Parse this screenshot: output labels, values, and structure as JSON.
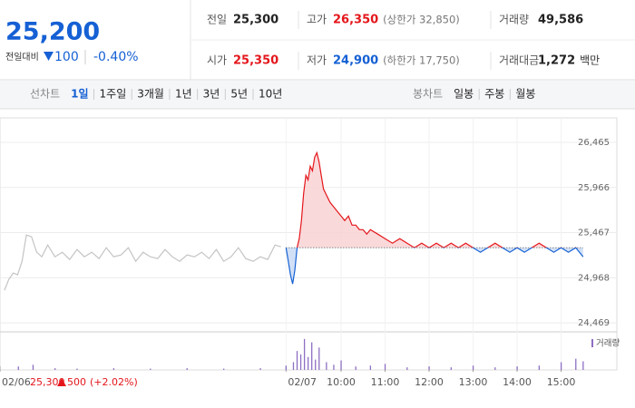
{
  "quote": {
    "price": "25,200",
    "change_label": "전일대비",
    "change": "100",
    "change_pct": "-0.40%"
  },
  "stats": [
    {
      "label": "전일",
      "value": "25,300",
      "color": "#222222"
    },
    {
      "label": "고가",
      "value": "26,350",
      "note": "(상한가 32,850)",
      "color": "#e4161b"
    },
    {
      "label": "거래량",
      "value": "49,586",
      "color": "#222222"
    },
    {
      "label": "시가",
      "value": "25,350",
      "color": "#e4161b"
    },
    {
      "label": "저가",
      "value": "24,900",
      "note": "(하한가 17,750)",
      "color": "#1560d4"
    },
    {
      "label": "거래대금",
      "value": "1,272",
      "unit": "백만",
      "color": "#222222"
    }
  ],
  "line_tabs": {
    "label": "선차트",
    "items": [
      "1일",
      "1주일",
      "3개월",
      "1년",
      "3년",
      "5년",
      "10년"
    ]
  },
  "candle_tabs": {
    "label": "봉차트",
    "items": [
      "일봉",
      "주봉",
      "월봉"
    ]
  },
  "prev_day": {
    "close": "25,300",
    "change": "500",
    "change_pct": "(+2.02%)"
  },
  "chart_data": [
    {
      "type": "line",
      "baseline": 25300,
      "up_color": "#e4161b",
      "down_color": "#1560d4",
      "xlim": [
        -405,
        436
      ],
      "ylim": [
        24370,
        26555
      ],
      "xticks": [
        {
          "value": -405,
          "label": "02/06"
        },
        {
          "value": -15,
          "label": "02/07"
        },
        {
          "value": 60,
          "label": "10:00"
        },
        {
          "value": 120,
          "label": "11:00"
        },
        {
          "value": 180,
          "label": "12:00"
        },
        {
          "value": 240,
          "label": "13:00"
        },
        {
          "value": 300,
          "label": "14:00"
        },
        {
          "value": 360,
          "label": "15:00"
        }
      ],
      "yticks": [
        {
          "value": 24469,
          "label": "24,469"
        },
        {
          "value": 24968,
          "label": "24,968"
        },
        {
          "value": 25467,
          "label": "25,467"
        },
        {
          "value": 25966,
          "label": "25,966"
        },
        {
          "value": 26465,
          "label": "26,465"
        }
      ],
      "grid": true,
      "series": [
        {
          "name": "02/06",
          "color": "#c4c4c4",
          "x": [
            -399,
            -393,
            -387,
            -381,
            -375,
            -369,
            -362,
            -355,
            -348,
            -340,
            -330,
            -320,
            -310,
            -300,
            -290,
            -280,
            -270,
            -260,
            -250,
            -240,
            -230,
            -220,
            -210,
            -200,
            -190,
            -180,
            -170,
            -160,
            -150,
            -140,
            -130,
            -120,
            -110,
            -100,
            -90,
            -80,
            -70,
            -60,
            -50,
            -40,
            -30,
            -22
          ],
          "values": [
            24830,
            24950,
            25020,
            25000,
            25150,
            25440,
            25420,
            25250,
            25200,
            25330,
            25200,
            25250,
            25170,
            25280,
            25200,
            25250,
            25180,
            25300,
            25200,
            25220,
            25300,
            25150,
            25250,
            25200,
            25180,
            25280,
            25200,
            25150,
            25220,
            25200,
            25250,
            25180,
            25280,
            25150,
            25200,
            25300,
            25180,
            25150,
            25200,
            25170,
            25330,
            25310
          ]
        },
        {
          "name": "02/07",
          "color": "#e4161b",
          "x": [
            -15,
            -12,
            -9,
            -6,
            -3,
            0,
            3,
            6,
            9,
            12,
            15,
            18,
            21,
            24,
            27,
            30,
            33,
            36,
            39,
            42,
            45,
            50,
            55,
            60,
            65,
            70,
            75,
            80,
            85,
            90,
            95,
            100,
            110,
            120,
            130,
            140,
            150,
            160,
            170,
            180,
            190,
            200,
            210,
            220,
            230,
            240,
            250,
            260,
            270,
            280,
            290,
            300,
            310,
            320,
            330,
            340,
            350,
            360,
            370,
            380,
            390
          ],
          "values": [
            25300,
            25150,
            25000,
            24900,
            25050,
            25300,
            25400,
            25600,
            25900,
            26100,
            26050,
            26200,
            26150,
            26300,
            26350,
            26250,
            26100,
            25950,
            25900,
            25850,
            25800,
            25750,
            25700,
            25650,
            25600,
            25650,
            25550,
            25550,
            25500,
            25500,
            25450,
            25500,
            25450,
            25400,
            25350,
            25400,
            25350,
            25300,
            25350,
            25300,
            25350,
            25300,
            25350,
            25300,
            25350,
            25300,
            25250,
            25300,
            25350,
            25300,
            25250,
            25300,
            25250,
            25300,
            25350,
            25300,
            25250,
            25300,
            25250,
            25300,
            25200
          ]
        }
      ]
    },
    {
      "type": "bar",
      "legend": "거래량",
      "color": "#8e6fc4",
      "xlim": [
        -405,
        436
      ],
      "ylim": [
        0,
        4000
      ],
      "x": [
        -380,
        -360,
        -330,
        -300,
        -250,
        -200,
        -150,
        -100,
        -50,
        -15,
        -5,
        0,
        5,
        10,
        15,
        20,
        25,
        30,
        40,
        50,
        60,
        80,
        100,
        120,
        150,
        180,
        210,
        240,
        270,
        300,
        330,
        360,
        380,
        390
      ],
      "values": [
        400,
        600,
        200,
        150,
        200,
        150,
        200,
        150,
        200,
        500,
        900,
        2200,
        1800,
        3600,
        1500,
        3200,
        1200,
        2600,
        900,
        600,
        1100,
        400,
        500,
        700,
        300,
        400,
        300,
        500,
        300,
        400,
        500,
        900,
        1300,
        1000
      ]
    }
  ]
}
